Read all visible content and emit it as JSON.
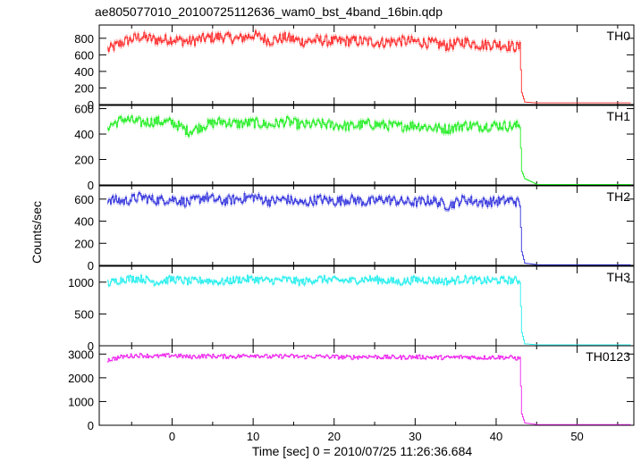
{
  "chart_data": {
    "type": "line",
    "title": "ae805077010_20100725112636_wam0_bst_4band_16bin.qdp",
    "xlabel": "Time [sec] 0 = 2010/07/25 11:26:36.684",
    "ylabel": "Counts/sec",
    "xlim": [
      -9,
      57
    ],
    "x_ticks": [
      0,
      10,
      20,
      30,
      40,
      50
    ],
    "x_tick_labels": [
      "0",
      "10",
      "20",
      "30",
      "40",
      "50"
    ],
    "grid": false,
    "panels": [
      {
        "name": "TH0",
        "color": "#ff2b2b",
        "ylim": [
          0,
          960
        ],
        "y_ticks": [
          0,
          200,
          400,
          600,
          800
        ],
        "y_tick_labels": [
          "0",
          "200",
          "400",
          "600",
          "800"
        ],
        "level": 760,
        "noise": 65,
        "x": [
          -8,
          -6,
          -4,
          -2,
          0,
          2,
          4,
          6,
          8,
          10,
          12,
          14,
          16,
          18,
          20,
          22,
          24,
          26,
          28,
          30,
          32,
          34,
          36,
          38,
          40,
          42,
          42.9,
          43.1,
          43.5,
          45,
          50,
          56
        ],
        "y": [
          660,
          760,
          820,
          780,
          790,
          760,
          800,
          820,
          790,
          840,
          770,
          810,
          760,
          780,
          760,
          770,
          760,
          750,
          770,
          760,
          740,
          710,
          760,
          720,
          730,
          700,
          690,
          150,
          30,
          20,
          20,
          20
        ]
      },
      {
        "name": "TH1",
        "color": "#22ee22",
        "ylim": [
          0,
          625
        ],
        "y_ticks": [
          0,
          200,
          400,
          600
        ],
        "y_tick_labels": [
          "0",
          "200",
          "400",
          "600"
        ],
        "level": 480,
        "noise": 40,
        "x": [
          -8,
          -6,
          -4,
          -2,
          0,
          2,
          4,
          6,
          8,
          10,
          12,
          14,
          16,
          18,
          20,
          22,
          24,
          26,
          28,
          30,
          32,
          34,
          36,
          38,
          40,
          42,
          42.9,
          43.1,
          43.5,
          45,
          50,
          56
        ],
        "y": [
          460,
          520,
          490,
          500,
          490,
          420,
          470,
          500,
          480,
          490,
          470,
          500,
          470,
          480,
          470,
          460,
          480,
          470,
          460,
          470,
          450,
          440,
          470,
          460,
          470,
          460,
          470,
          110,
          50,
          4,
          4,
          4
        ]
      },
      {
        "name": "TH2",
        "color": "#3333dd",
        "ylim": [
          0,
          720
        ],
        "y_ticks": [
          0,
          200,
          400,
          600
        ],
        "y_tick_labels": [
          "0",
          "200",
          "400",
          "600"
        ],
        "level": 590,
        "noise": 45,
        "x": [
          -8,
          -6,
          -4,
          -2,
          0,
          2,
          4,
          6,
          8,
          10,
          12,
          14,
          16,
          18,
          20,
          22,
          24,
          26,
          28,
          30,
          32,
          34,
          36,
          38,
          40,
          42,
          42.9,
          43.1,
          43.5,
          45,
          50,
          56
        ],
        "y": [
          600,
          580,
          620,
          590,
          600,
          570,
          620,
          580,
          600,
          620,
          580,
          600,
          560,
          600,
          580,
          600,
          570,
          600,
          580,
          570,
          590,
          540,
          600,
          570,
          580,
          590,
          560,
          130,
          20,
          6,
          6,
          6
        ]
      },
      {
        "name": "TH3",
        "color": "#22eeee",
        "ylim": [
          0,
          1250
        ],
        "y_ticks": [
          0,
          500,
          1000
        ],
        "y_tick_labels": [
          "0",
          "500",
          "1000"
        ],
        "level": 1030,
        "noise": 60,
        "x": [
          -8,
          -6,
          -4,
          -2,
          0,
          2,
          4,
          6,
          8,
          10,
          12,
          14,
          16,
          18,
          20,
          22,
          24,
          26,
          28,
          30,
          32,
          34,
          36,
          38,
          40,
          42,
          42.9,
          43.1,
          43.5,
          45,
          50,
          56
        ],
        "y": [
          980,
          1050,
          1060,
          1000,
          1050,
          1010,
          1030,
          1000,
          1040,
          1050,
          1020,
          1040,
          1000,
          1050,
          1030,
          1020,
          1050,
          1030,
          1000,
          1040,
          1030,
          1010,
          1050,
          1020,
          1030,
          1030,
          1020,
          220,
          30,
          15,
          15,
          15
        ]
      },
      {
        "name": "TH0123",
        "color": "#ee22ee",
        "ylim": [
          0,
          3350
        ],
        "y_ticks": [
          0,
          1000,
          2000,
          3000
        ],
        "y_tick_labels": [
          "0",
          "1000",
          "2000",
          "3000"
        ],
        "level": 2900,
        "noise": 90,
        "x": [
          -8,
          -6,
          -4,
          -2,
          0,
          2,
          4,
          6,
          8,
          10,
          12,
          14,
          16,
          18,
          20,
          22,
          24,
          26,
          28,
          30,
          32,
          34,
          36,
          38,
          40,
          42,
          42.9,
          43.1,
          43.5,
          45,
          50,
          56
        ],
        "y": [
          2750,
          2900,
          2950,
          2900,
          2950,
          2880,
          2920,
          2900,
          2900,
          2960,
          2880,
          2920,
          2880,
          2900,
          2880,
          2860,
          2900,
          2870,
          2860,
          2880,
          2860,
          2850,
          2880,
          2850,
          2870,
          2850,
          2800,
          500,
          100,
          30,
          30,
          30
        ]
      }
    ]
  }
}
